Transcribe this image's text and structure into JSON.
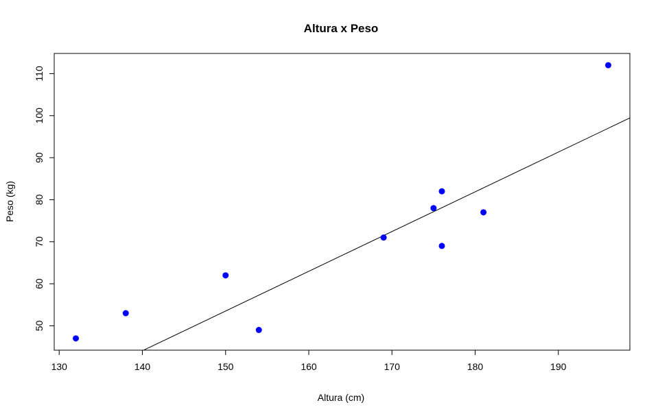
{
  "chart_data": {
    "type": "scatter",
    "title": "Altura x Peso",
    "xlabel": "Altura (cm)",
    "ylabel": "Peso (kg)",
    "xlim": [
      129.4,
      198.6
    ],
    "ylim": [
      44.2,
      114.8
    ],
    "xticks": [
      130,
      140,
      150,
      160,
      170,
      180,
      190
    ],
    "yticks": [
      50,
      60,
      70,
      80,
      90,
      100,
      110
    ],
    "grid": false,
    "legend": "none",
    "point_color": "#0000ff",
    "line_color": "#000000",
    "points": [
      {
        "x": 132,
        "y": 47
      },
      {
        "x": 138,
        "y": 53
      },
      {
        "x": 150,
        "y": 62
      },
      {
        "x": 154,
        "y": 49
      },
      {
        "x": 169,
        "y": 71
      },
      {
        "x": 175,
        "y": 78
      },
      {
        "x": 176,
        "y": 82
      },
      {
        "x": 176,
        "y": 69
      },
      {
        "x": 181,
        "y": 77
      },
      {
        "x": 196,
        "y": 112
      }
    ],
    "fit_line": {
      "intercept": -88.3,
      "slope": 0.9454
    }
  }
}
